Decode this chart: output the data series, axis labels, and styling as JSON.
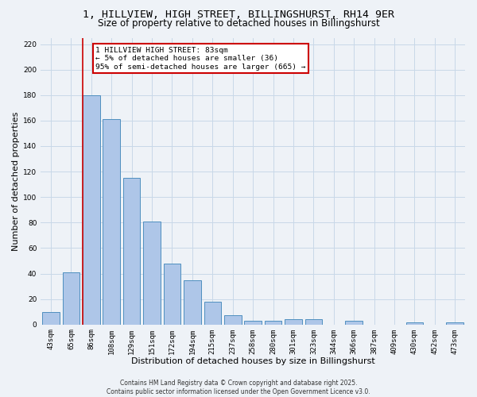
{
  "title": "1, HILLVIEW, HIGH STREET, BILLINGSHURST, RH14 9ER",
  "subtitle": "Size of property relative to detached houses in Billingshurst",
  "xlabel": "Distribution of detached houses by size in Billingshurst",
  "ylabel": "Number of detached properties",
  "footer_line1": "Contains HM Land Registry data © Crown copyright and database right 2025.",
  "footer_line2": "Contains public sector information licensed under the Open Government Licence v3.0.",
  "categories": [
    "43sqm",
    "65sqm",
    "86sqm",
    "108sqm",
    "129sqm",
    "151sqm",
    "172sqm",
    "194sqm",
    "215sqm",
    "237sqm",
    "258sqm",
    "280sqm",
    "301sqm",
    "323sqm",
    "344sqm",
    "366sqm",
    "387sqm",
    "409sqm",
    "430sqm",
    "452sqm",
    "473sqm"
  ],
  "values": [
    10,
    41,
    180,
    161,
    115,
    81,
    48,
    35,
    18,
    7,
    3,
    3,
    4,
    4,
    0,
    3,
    0,
    0,
    2,
    0,
    2
  ],
  "bar_color": "#aec6e8",
  "bar_edge_color": "#4f8fbf",
  "vline_index": 2,
  "vline_color": "#cc0000",
  "annotation_line1": "1 HILLVIEW HIGH STREET: 83sqm",
  "annotation_line2": "← 5% of detached houses are smaller (36)",
  "annotation_line3": "95% of semi-detached houses are larger (665) →",
  "annotation_box_color": "#cc0000",
  "annotation_bg": "#ffffff",
  "ylim": [
    0,
    225
  ],
  "yticks": [
    0,
    20,
    40,
    60,
    80,
    100,
    120,
    140,
    160,
    180,
    200,
    220
  ],
  "grid_color": "#c8d8e8",
  "background_color": "#eef2f7",
  "title_fontsize": 9.5,
  "subtitle_fontsize": 8.5,
  "tick_fontsize": 6.5,
  "label_fontsize": 8,
  "footer_fontsize": 5.5,
  "annotation_fontsize": 6.8
}
